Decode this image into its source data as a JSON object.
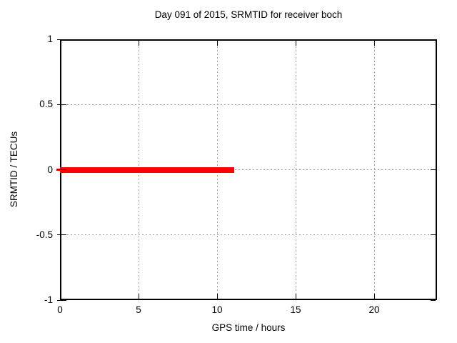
{
  "chart_data": {
    "type": "line",
    "title": "Day 091 of 2015, SRMTID for receiver boch",
    "xlabel": "GPS time / hours",
    "ylabel": "SRMTID / TECUs",
    "xlim": [
      0,
      24
    ],
    "ylim": [
      -1,
      1
    ],
    "xticks": [
      {
        "v": 0,
        "label": "0"
      },
      {
        "v": 5,
        "label": "5"
      },
      {
        "v": 10,
        "label": "10"
      },
      {
        "v": 15,
        "label": "15"
      },
      {
        "v": 20,
        "label": "20"
      }
    ],
    "yticks": [
      {
        "v": -1,
        "label": "-1"
      },
      {
        "v": -0.5,
        "label": "-0.5"
      },
      {
        "v": 0,
        "label": "0"
      },
      {
        "v": 0.5,
        "label": "0.5"
      },
      {
        "v": 1,
        "label": "1"
      }
    ],
    "grid": true,
    "legend": "none",
    "series": [
      {
        "name": "SRMTID",
        "color": "#ff0000",
        "segments": [
          {
            "x1": -0.23,
            "y1": 0,
            "x2": 0,
            "y2": 0,
            "linewidth": 3
          },
          {
            "x1": 0,
            "y1": 0,
            "x2": 11.1,
            "y2": 0,
            "linewidth": 8
          }
        ]
      }
    ],
    "colors": {
      "axis": "#000000",
      "grid": "#9e9e9e",
      "text": "#000000",
      "series": "#ff0000",
      "background": "#ffffff"
    }
  }
}
